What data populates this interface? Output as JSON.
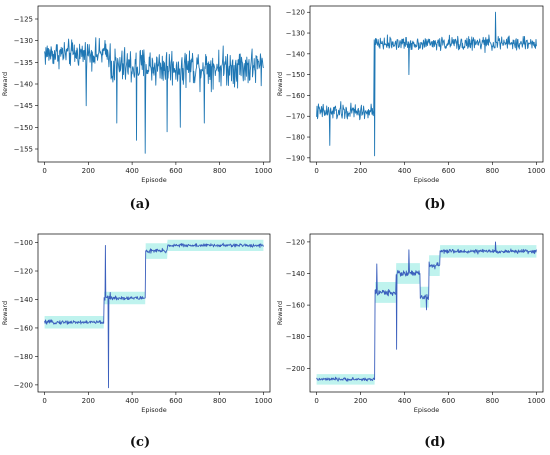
{
  "chart_data": [
    {
      "type": "line",
      "caption": "(a)",
      "xlabel": "Episode",
      "ylabel": "Reward",
      "xlim": [
        -30,
        1030
      ],
      "ylim": [
        -158,
        -122
      ],
      "xticks": [
        0,
        200,
        400,
        600,
        800,
        1000
      ],
      "yticks": [
        -155,
        -150,
        -145,
        -140,
        -135,
        -130,
        -125
      ],
      "series": [
        {
          "color": "#1f77b4",
          "segments": [
            {
              "x0": 0,
              "x1": 300,
              "mean": -133,
              "noise": 4.5
            },
            {
              "x0": 300,
              "x1": 1000,
              "mean": -136,
              "noise": 6.5
            }
          ],
          "spikes": [
            {
              "x": 330,
              "y": -149
            },
            {
              "x": 420,
              "y": -153
            },
            {
              "x": 460,
              "y": -156
            },
            {
              "x": 560,
              "y": -151
            },
            {
              "x": 620,
              "y": -150
            },
            {
              "x": 730,
              "y": -149
            },
            {
              "x": 190,
              "y": -145
            }
          ]
        }
      ]
    },
    {
      "type": "line",
      "caption": "(b)",
      "xlabel": "Episode",
      "ylabel": "Reward",
      "xlim": [
        -30,
        1030
      ],
      "ylim": [
        -192,
        -117
      ],
      "xticks": [
        0,
        200,
        400,
        600,
        800,
        1000
      ],
      "yticks": [
        -190,
        -180,
        -170,
        -160,
        -150,
        -140,
        -130,
        -120
      ],
      "series": [
        {
          "color": "#1f77b4",
          "segments": [
            {
              "x0": 0,
              "x1": 260,
              "mean": -168,
              "noise": 6
            },
            {
              "x0": 260,
              "x1": 600,
              "mean": -135,
              "noise": 4.5
            },
            {
              "x0": 600,
              "x1": 1000,
              "mean": -135,
              "noise": 5
            }
          ],
          "spikes": [
            {
              "x": 60,
              "y": -184
            },
            {
              "x": 265,
              "y": -189
            },
            {
              "x": 815,
              "y": -120
            },
            {
              "x": 420,
              "y": -150
            }
          ]
        }
      ]
    },
    {
      "type": "line",
      "caption": "(c)",
      "xlabel": "Episode",
      "ylabel": "Reward",
      "xlim": [
        -30,
        1030
      ],
      "ylim": [
        -205,
        -94
      ],
      "xticks": [
        0,
        200,
        400,
        600,
        800,
        1000
      ],
      "yticks": [
        -200,
        -180,
        -160,
        -140,
        -120,
        -100
      ],
      "band": "#b8f2ec",
      "series": [
        {
          "color": "#3b5fbd",
          "segments": [
            {
              "x0": 0,
              "x1": 270,
              "mean": -156,
              "noise": 2
            },
            {
              "x0": 270,
              "x1": 460,
              "mean": -139,
              "noise": 2
            },
            {
              "x0": 460,
              "x1": 560,
              "mean": -106,
              "noise": 2.5
            },
            {
              "x0": 560,
              "x1": 1000,
              "mean": -102,
              "noise": 1.8
            }
          ],
          "spikes": [
            {
              "x": 278,
              "y": -102
            },
            {
              "x": 292,
              "y": -202
            },
            {
              "x": 300,
              "y": -135
            }
          ]
        }
      ]
    },
    {
      "type": "line",
      "caption": "(d)",
      "xlabel": "Episode",
      "ylabel": "Reward",
      "xlim": [
        -30,
        1030
      ],
      "ylim": [
        -215,
        -115
      ],
      "xticks": [
        0,
        200,
        400,
        600,
        800,
        1000
      ],
      "yticks": [
        -200,
        -180,
        -160,
        -140,
        -120
      ],
      "band": "#b8f2ec",
      "series": [
        {
          "color": "#3b5fbd",
          "segments": [
            {
              "x0": 0,
              "x1": 265,
              "mean": -207,
              "noise": 1.5
            },
            {
              "x0": 265,
              "x1": 360,
              "mean": -152,
              "noise": 3
            },
            {
              "x0": 360,
              "x1": 470,
              "mean": -140,
              "noise": 3
            },
            {
              "x0": 470,
              "x1": 510,
              "mean": -155,
              "noise": 3
            },
            {
              "x0": 510,
              "x1": 560,
              "mean": -135,
              "noise": 3
            },
            {
              "x0": 560,
              "x1": 1000,
              "mean": -126,
              "noise": 1.8
            }
          ],
          "spikes": [
            {
              "x": 275,
              "y": -134
            },
            {
              "x": 365,
              "y": -188
            },
            {
              "x": 420,
              "y": -125
            },
            {
              "x": 500,
              "y": -163
            },
            {
              "x": 815,
              "y": -120
            }
          ]
        }
      ]
    }
  ]
}
